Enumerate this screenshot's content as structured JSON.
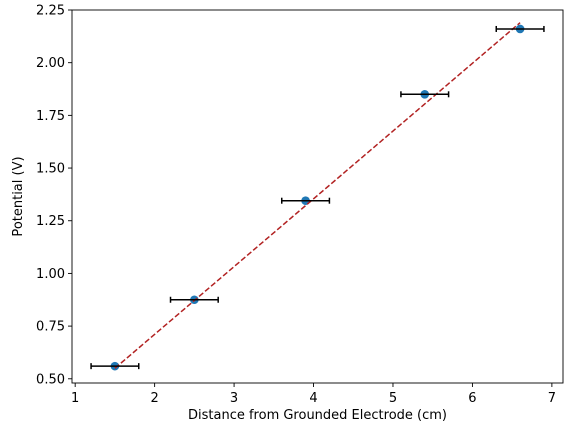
{
  "chart_data": {
    "type": "scatter",
    "title": "",
    "xlabel": "Distance from Grounded Electrode (cm)",
    "ylabel": "Potential (V)",
    "xlim": [
      0.96,
      7.14
    ],
    "ylim": [
      0.48,
      2.25
    ],
    "xticks": [
      1,
      2,
      3,
      4,
      5,
      6,
      7
    ],
    "xtick_labels": [
      "1",
      "2",
      "3",
      "4",
      "5",
      "6",
      "7"
    ],
    "yticks": [
      0.5,
      0.75,
      1.0,
      1.25,
      1.5,
      1.75,
      2.0,
      2.25
    ],
    "ytick_labels": [
      "0.50",
      "0.75",
      "1.00",
      "1.25",
      "1.50",
      "1.75",
      "2.00",
      "2.25"
    ],
    "grid": false,
    "series": [
      {
        "kind": "points-with-x-error",
        "x": [
          1.5,
          2.5,
          3.9,
          5.4,
          6.6
        ],
        "y": [
          0.56,
          0.875,
          1.345,
          1.85,
          2.16
        ],
        "xerr": [
          0.3,
          0.3,
          0.3,
          0.3,
          0.3
        ]
      },
      {
        "kind": "fit-line",
        "x": [
          1.5,
          6.6
        ],
        "y": [
          0.55,
          2.19
        ]
      }
    ],
    "colors": {
      "marker": "#1f77b4",
      "errorbar": "#000000",
      "fit_line": "#b22222"
    }
  }
}
